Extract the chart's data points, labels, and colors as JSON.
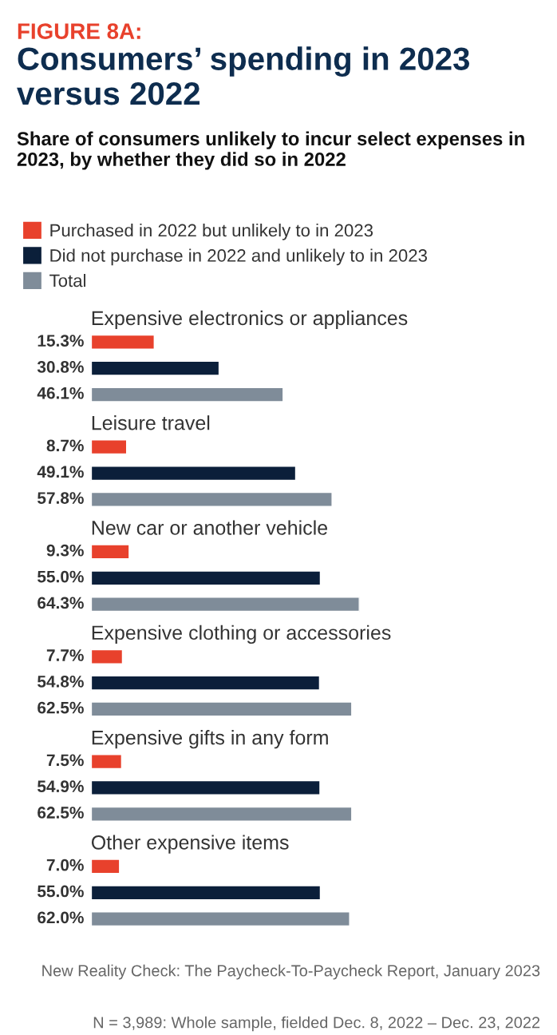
{
  "chart_data": {
    "type": "bar",
    "orientation": "horizontal",
    "title": "FIGURE 8A:",
    "subtitle": "Consumers’ spending in 2023 versus 2022",
    "categories": [
      "Expensive electronics or appliances",
      "Leisure travel",
      "New car or another vehicle",
      "Expensive clothing or accessories",
      "Expensive gifts in any form",
      "Other expensive items"
    ],
    "series": [
      {
        "name": "Purchased in 2022 but unlikely to in 2023",
        "color": "#e8412c",
        "values": [
          15.3,
          8.7,
          9.3,
          7.7,
          7.5,
          7.0
        ],
        "value_labels": [
          "15.3%",
          "8.7%",
          "9.3%",
          "7.7%",
          "7.5%",
          "7.0%"
        ]
      },
      {
        "name": "Did not purchase in 2022 and unlikely to in 2023",
        "color": "#0b1f3a",
        "values": [
          30.8,
          49.1,
          55.0,
          54.8,
          54.9,
          55.0
        ],
        "value_labels": [
          "30.8%",
          "49.1%",
          "55.0%",
          "54.8%",
          "54.9%",
          "55.0%"
        ]
      },
      {
        "name": "Total",
        "color": "#7f8c99",
        "values": [
          46.1,
          57.8,
          64.3,
          62.5,
          62.5,
          62.0
        ],
        "value_labels": [
          "46.1%",
          "57.8%",
          "64.3%",
          "62.5%",
          "62.5%",
          "62.0%"
        ]
      }
    ],
    "tick_labels": false,
    "legend": "top left",
    "annotations": [
      "Share of consumers unlikely to incur select expenses in 2023, by whether they did so in 2022",
      "New Reality Check: The Paycheck-To-Paycheck Report, January 2023",
      "N = 3,989: Whole sample, fielded Dec. 8, 2022 – Dec. 23, 2022"
    ]
  }
}
